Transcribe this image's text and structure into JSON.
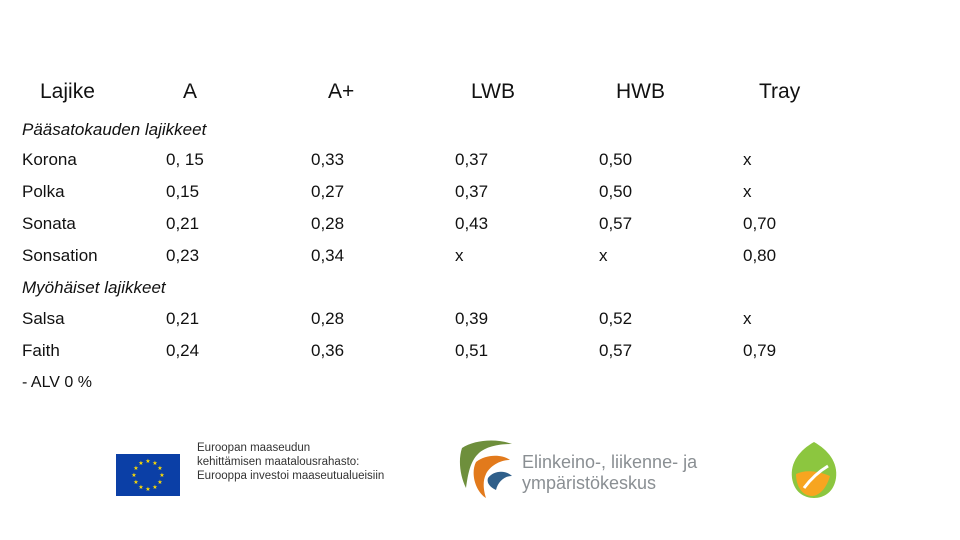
{
  "headers": [
    "Lajike",
    "A",
    "A+",
    "LWB",
    "HWB",
    "Tray"
  ],
  "sections": [
    {
      "title": "Pääsatokauden lajikkeet",
      "rows": [
        [
          "Korona",
          "0, 15",
          "0,33",
          "0,37",
          "0,50",
          "x"
        ],
        [
          "Polka",
          "0,15",
          "0,27",
          "0,37",
          "0,50",
          "x"
        ],
        [
          "Sonata",
          "0,21",
          "0,28",
          "0,43",
          "0,57",
          "0,70"
        ],
        [
          "Sonsation",
          "0,23",
          "0,34",
          "x",
          "x",
          "0,80"
        ]
      ]
    },
    {
      "title": "Myöhäiset lajikkeet",
      "rows": [
        [
          "Salsa",
          "0,21",
          "0,28",
          "0,39",
          "0,52",
          "x"
        ],
        [
          "Faith",
          "0,24",
          "0,36",
          "0,51",
          "0,57",
          "0,79"
        ]
      ]
    }
  ],
  "note": "- ALV 0 %",
  "logos": {
    "eu_text": [
      "Euroopan maaseudun",
      "kehittämisen maatalousrahasto:",
      "Eurooppa investoi maaseutualueisiin"
    ],
    "ely_text": [
      "Elinkeino-, liikenne- ja",
      "ympäristökeskus"
    ],
    "eu_flag_color": "#0b3fa6",
    "star_color": "#ffdd00",
    "ely_colors": [
      "#6e8f3c",
      "#e27a1c",
      "#2f5f8a"
    ],
    "right_logo_colors": [
      "#8cc63f",
      "#f7a520"
    ]
  }
}
